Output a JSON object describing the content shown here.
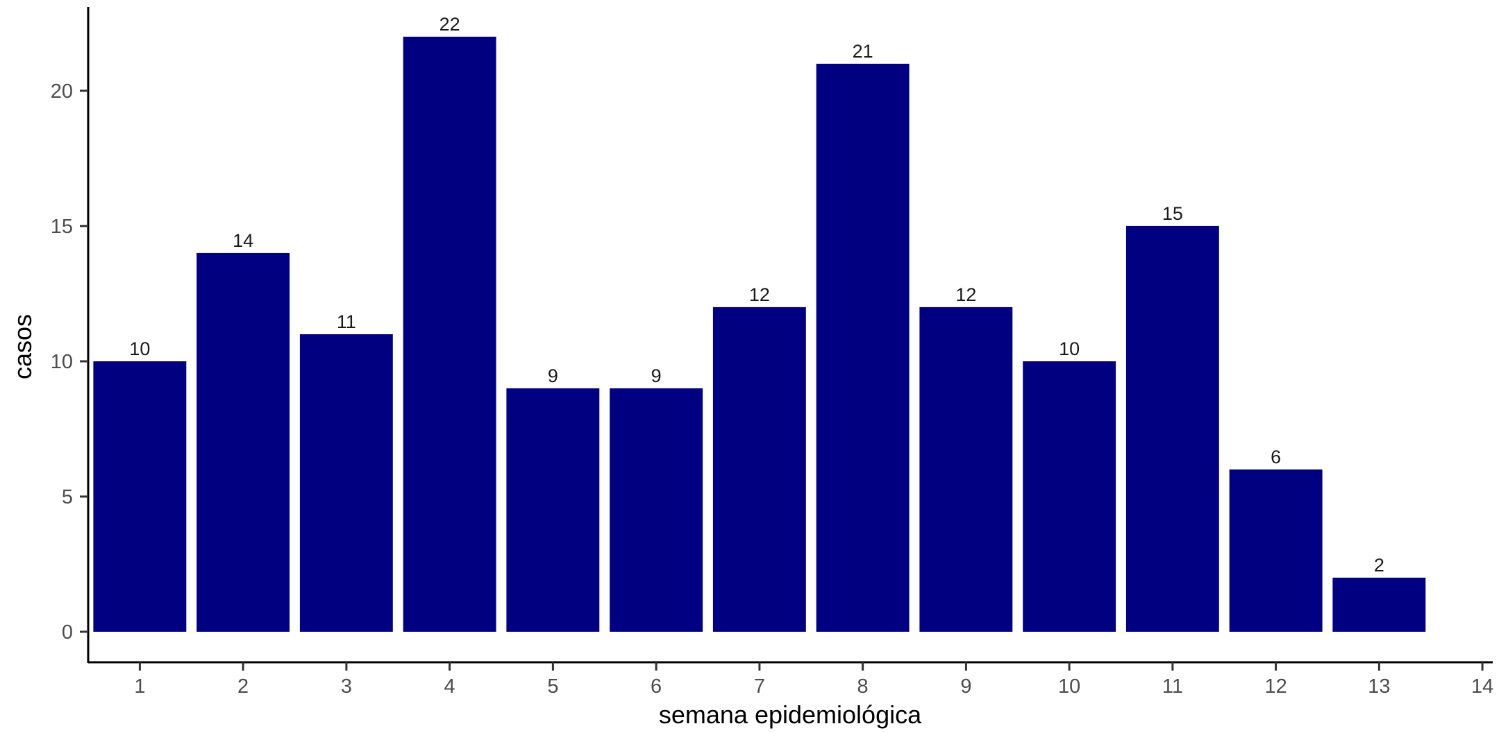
{
  "chart_data": {
    "type": "bar",
    "title": "",
    "xlabel": "semana epidemiológica",
    "ylabel": "casos",
    "categories": [
      1,
      2,
      3,
      4,
      5,
      6,
      7,
      8,
      9,
      10,
      11,
      12,
      13
    ],
    "values": [
      10,
      14,
      11,
      22,
      9,
      9,
      12,
      21,
      12,
      10,
      15,
      6,
      2
    ],
    "xticks": [
      1,
      2,
      3,
      4,
      5,
      6,
      7,
      8,
      9,
      10,
      11,
      12,
      13,
      14
    ],
    "yticks": [
      0,
      5,
      10,
      15,
      20
    ],
    "xlim": [
      0.5,
      14.1
    ],
    "ylim": [
      0,
      23.1
    ],
    "grid": false,
    "legend": "none",
    "bar_color": "#000080",
    "data_labels": true
  }
}
